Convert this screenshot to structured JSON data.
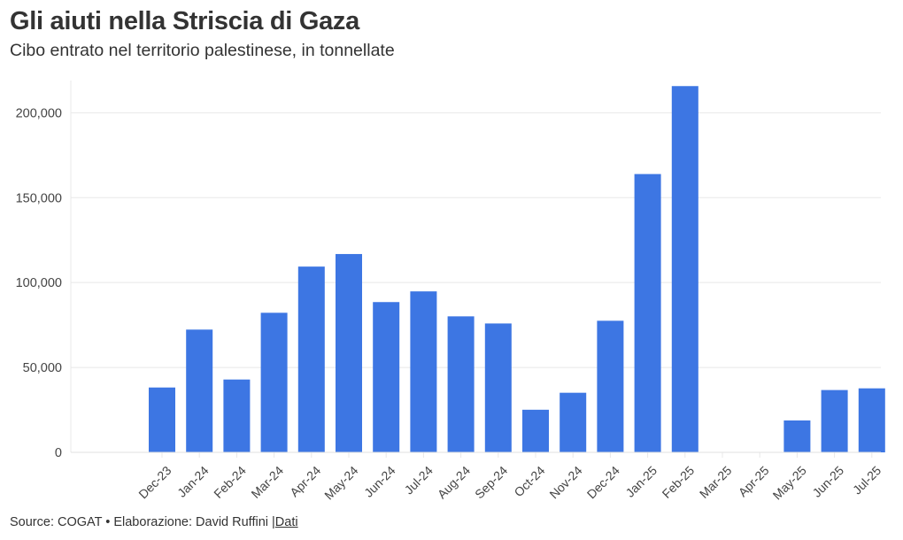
{
  "header": {
    "title": "Gli aiuti nella Striscia di Gaza",
    "subtitle": "Cibo entrato nel territorio palestinese, in tonnellate"
  },
  "footer": {
    "source_text": "Source: COGAT • Elaborazione: David Ruffini |",
    "link_label": "Dati"
  },
  "colors": {
    "bar": "#3d76e3",
    "grid": "#e8e8e8",
    "text": "#333333"
  },
  "chart_data": {
    "type": "bar",
    "title": "Gli aiuti nella Striscia di Gaza",
    "subtitle": "Cibo entrato nel territorio palestinese, in tonnellate",
    "xlabel": "",
    "ylabel": "",
    "ylim": [
      0,
      220000
    ],
    "yticks": [
      0,
      50000,
      100000,
      150000,
      200000
    ],
    "ytick_labels": [
      "0",
      "50,000",
      "100,000",
      "150,000",
      "200,000"
    ],
    "grid": true,
    "legend": "none",
    "categories": [
      "Dec-23",
      "Jan-24",
      "Feb-24",
      "Mar-24",
      "Apr-24",
      "May-24",
      "Jun-24",
      "Jul-24",
      "Aug-24",
      "Sep-24",
      "Oct-24",
      "Nov-24",
      "Dec-24",
      "Jan-25",
      "Feb-25",
      "Mar-25",
      "Apr-25",
      "May-25",
      "Jun-25",
      "Jul-25"
    ],
    "series": [
      {
        "name": "Cibo (tonnellate)",
        "values": [
          38200,
          72300,
          42900,
          82200,
          109400,
          116800,
          88500,
          94800,
          80100,
          75900,
          25100,
          35100,
          77500,
          163900,
          215700,
          0,
          0,
          18800,
          36700,
          37700
        ]
      }
    ]
  }
}
